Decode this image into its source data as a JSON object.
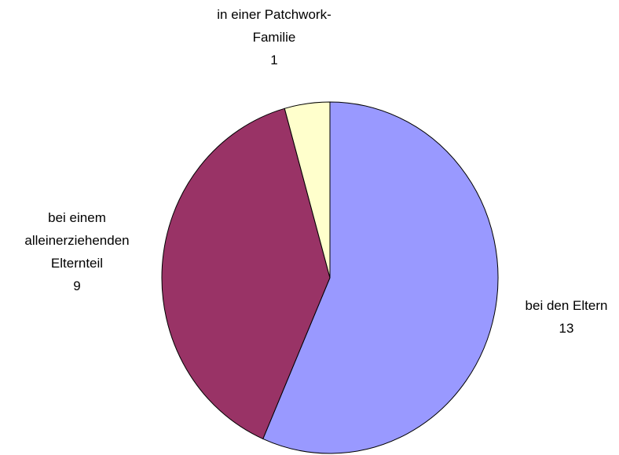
{
  "chart_data": {
    "type": "pie",
    "title": "",
    "slices": [
      {
        "label_lines": [
          "bei den Eltern"
        ],
        "value": 13,
        "value_text": "13",
        "color": "#9999ff"
      },
      {
        "label_lines": [
          "bei einem",
          "alleinerziehenden",
          "Elternteil"
        ],
        "value": 9,
        "value_text": "9",
        "color": "#993366"
      },
      {
        "label_lines": [
          "in einer Patchwork-",
          "Familie"
        ],
        "value": 1,
        "value_text": "1",
        "color": "#ffffcc"
      }
    ],
    "start_angle_deg": 0,
    "direction": "clockwise",
    "legend": "none",
    "data_labels": "category-and-value"
  }
}
